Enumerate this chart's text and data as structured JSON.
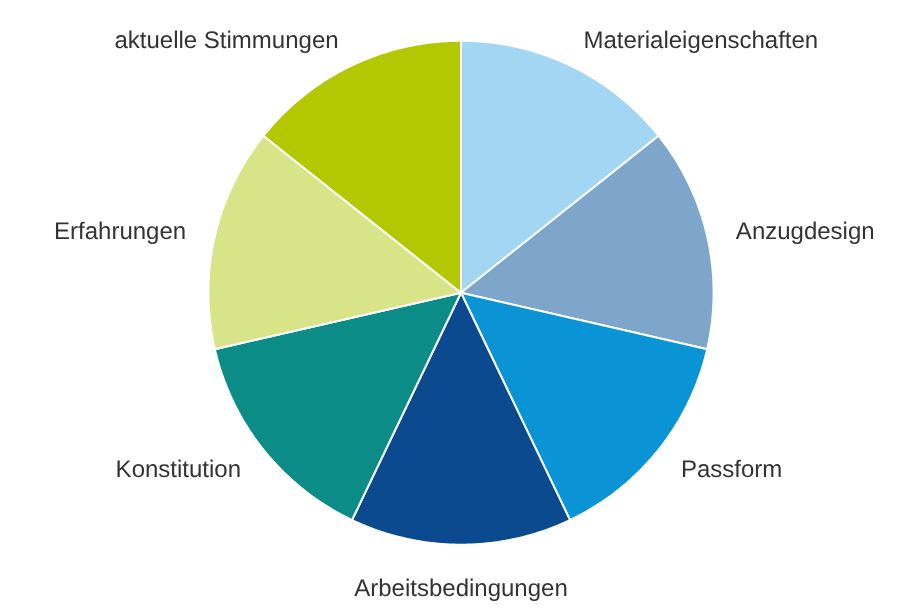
{
  "chart_data": {
    "type": "pie",
    "categories": [
      "Materialeigenschaften",
      "Anzugdesign",
      "Passform",
      "Arbeitsbedingungen",
      "Konstitution",
      "Erfahrungen",
      "aktuelle Stimmungen"
    ],
    "values": [
      14.3,
      14.3,
      14.3,
      14.2,
      14.3,
      14.3,
      14.3
    ],
    "colors": [
      "#a3d6f2",
      "#7ea6cb",
      "#0a94d6",
      "#0b4a8f",
      "#0b8c87",
      "#d7e487",
      "#b3c800"
    ]
  }
}
